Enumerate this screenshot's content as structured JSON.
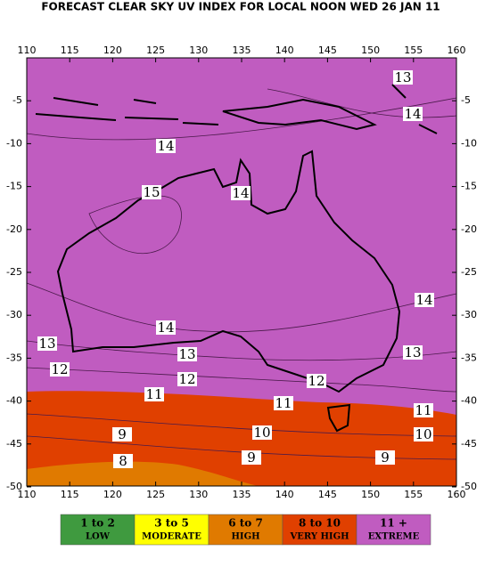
{
  "title": "FORECAST CLEAR SKY UV INDEX FOR LOCAL NOON WED 26 JAN 11",
  "lon_ticks": [
    110,
    115,
    120,
    125,
    130,
    135,
    140,
    145,
    150,
    155,
    160
  ],
  "lat_ticks": [
    -5,
    -10,
    -15,
    -20,
    -25,
    -30,
    -35,
    -40,
    -45,
    -50
  ],
  "contour_labels": [
    13,
    14,
    14,
    15,
    14,
    14,
    14,
    13,
    13,
    13,
    12,
    12,
    12,
    11,
    11,
    11,
    10,
    10,
    9,
    9,
    9,
    8
  ],
  "legend": [
    {
      "range": "1 to 2",
      "label": "LOW",
      "color": "#3f9a3f"
    },
    {
      "range": "3 to 5",
      "label": "MODERATE",
      "color": "#ffff00"
    },
    {
      "range": "6 to 7",
      "label": "HIGH",
      "color": "#e07a00"
    },
    {
      "range": "8 to 10",
      "label": "VERY HIGH",
      "color": "#e04000"
    },
    {
      "range": "11 +",
      "label": "EXTREME",
      "color": "#c05cc0"
    }
  ]
}
